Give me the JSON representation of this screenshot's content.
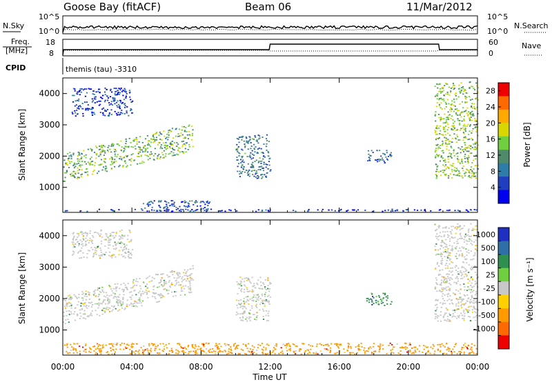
{
  "header": {
    "station": "Goose Bay (fitACF)",
    "beam": "Beam 06",
    "date": "11/Mar/2012"
  },
  "status_panels": {
    "nsky_label": "N.Sky",
    "nsky_ticks": [
      "10^5",
      "10^0"
    ],
    "nsearch_label": "N.Search",
    "nsearch_ticks": [
      "10^5",
      "10^0"
    ],
    "freq_label_line1": "Freq.",
    "freq_label_line2": "[MHz]",
    "freq_ticks": [
      "18",
      "8"
    ],
    "nave_label": "Nave",
    "nave_ticks": [
      "60",
      "0"
    ],
    "cpid_label": "CPID",
    "cpid_text": "themis (tau) -3310"
  },
  "colors": {
    "power": [
      "#0000ee",
      "#1f3fbf",
      "#2d7da8",
      "#4f8a6a",
      "#6fcf3f",
      "#d8d800",
      "#ffaa00",
      "#ff6a00",
      "#ee0000"
    ],
    "velocity": [
      "#ee0000",
      "#ff6a00",
      "#ff9a00",
      "#ffd000",
      "#c8c8c8",
      "#6fcf3f",
      "#2f8f4f",
      "#2f6fa8",
      "#1f2fbf"
    ],
    "ground_scatter": "#c8c8c8"
  },
  "chart_data": [
    {
      "type": "heatmap",
      "panel": "power",
      "ylabel": "Slant Range [km]",
      "xlim": [
        "00:00",
        "24:00"
      ],
      "ylim": [
        200,
        4500
      ],
      "y_ticks": [
        1000,
        2000,
        3000,
        4000
      ],
      "colorbar": {
        "label": "Power [dB]",
        "ticks": [
          "4",
          "8",
          "12",
          "16",
          "20",
          "24",
          "28"
        ],
        "range": [
          0,
          30
        ]
      },
      "regions": [
        {
          "name": "E-region band",
          "t_start": 0.0,
          "t_end": 24.0,
          "range_start": 250,
          "range_end": 320,
          "level": 2
        },
        {
          "name": "early morning band",
          "t_start": 0.0,
          "t_end": 7.5,
          "range_start": 1500,
          "range_end": 2400,
          "slope_km_per_hr": 130,
          "level": 14
        },
        {
          "name": "upper patch",
          "t_start": 0.5,
          "t_end": 4.0,
          "range_start": 3300,
          "range_end": 4200,
          "level": 3
        },
        {
          "name": "low-range patch",
          "t_start": 4.5,
          "t_end": 8.5,
          "range_start": 250,
          "range_end": 600,
          "level": 6
        },
        {
          "name": "midday feature",
          "t_start": 10.0,
          "t_end": 12.0,
          "range_start": 1300,
          "range_end": 2700,
          "level": 8
        },
        {
          "name": "afternoon patch",
          "t_start": 17.5,
          "t_end": 19.0,
          "range_start": 1800,
          "range_end": 2200,
          "level": 7
        },
        {
          "name": "evening cluster",
          "t_start": 21.5,
          "t_end": 24.0,
          "range_start": 1300,
          "range_end": 4400,
          "level": 15
        }
      ]
    },
    {
      "type": "heatmap",
      "panel": "velocity",
      "xlabel": "Time UT",
      "ylabel": "Slant Range [km]",
      "xlim": [
        "00:00",
        "24:00"
      ],
      "ylim": [
        200,
        4500
      ],
      "x_ticks": [
        "00:00",
        "04:00",
        "08:00",
        "12:00",
        "16:00",
        "20:00",
        "00:00"
      ],
      "y_ticks": [
        1000,
        2000,
        3000,
        4000
      ],
      "colorbar": {
        "label": "Velocity [m s⁻¹]",
        "ticks": [
          "1000",
          "500",
          "100",
          "25",
          "-25",
          "-100",
          "-500",
          "-1000"
        ]
      },
      "regions": [
        {
          "name": "E-region band",
          "t_start": 0.0,
          "t_end": 24.0,
          "range_start": 250,
          "range_end": 600,
          "vel_bin": 2
        },
        {
          "name": "early morning band (ground scatter)",
          "t_start": 0.0,
          "t_end": 7.5,
          "range_start": 1500,
          "range_end": 2400,
          "slope_km_per_hr": 130,
          "vel_bin": 4
        },
        {
          "name": "upper patch",
          "t_start": 0.5,
          "t_end": 4.0,
          "range_start": 3300,
          "range_end": 4200,
          "vel_bin": 4
        },
        {
          "name": "midday feature (ground scatter)",
          "t_start": 10.0,
          "t_end": 12.0,
          "range_start": 1300,
          "range_end": 2700,
          "vel_bin": 4
        },
        {
          "name": "afternoon patch",
          "t_start": 17.5,
          "t_end": 19.0,
          "range_start": 1800,
          "range_end": 2200,
          "vel_bin": 6
        },
        {
          "name": "evening cluster (ground scatter)",
          "t_start": 21.5,
          "t_end": 24.0,
          "range_start": 1300,
          "range_end": 4400,
          "vel_bin": 4
        }
      ]
    }
  ]
}
